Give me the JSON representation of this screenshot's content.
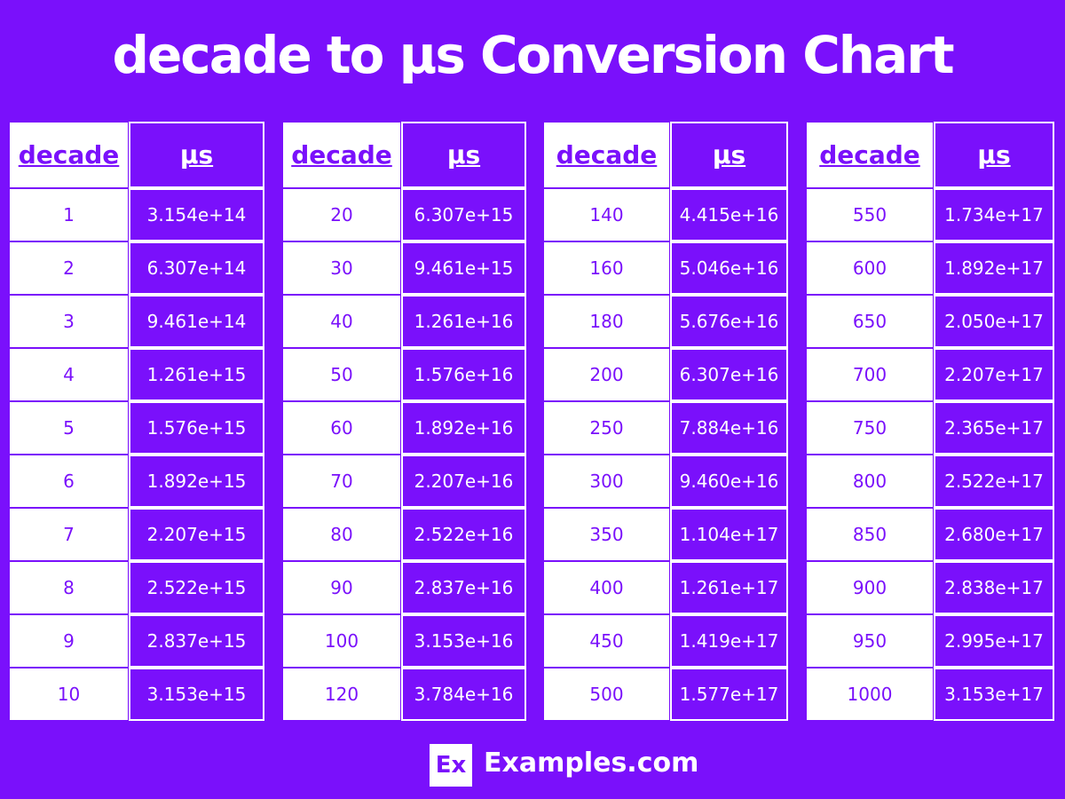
{
  "header": {
    "title": "decade to μs Conversion Chart"
  },
  "tables": [
    {
      "headers": [
        "decade",
        "μs"
      ],
      "rows": [
        [
          "1",
          "3.154e+14"
        ],
        [
          "2",
          "6.307e+14"
        ],
        [
          "3",
          "9.461e+14"
        ],
        [
          "4",
          "1.261e+15"
        ],
        [
          "5",
          "1.576e+15"
        ],
        [
          "6",
          "1.892e+15"
        ],
        [
          "7",
          "2.207e+15"
        ],
        [
          "8",
          "2.522e+15"
        ],
        [
          "9",
          "2.837e+15"
        ],
        [
          "10",
          "3.153e+15"
        ]
      ]
    },
    {
      "headers": [
        "decade",
        "μs"
      ],
      "rows": [
        [
          "20",
          "6.307e+15"
        ],
        [
          "30",
          "9.461e+15"
        ],
        [
          "40",
          "1.261e+16"
        ],
        [
          "50",
          "1.576e+16"
        ],
        [
          "60",
          "1.892e+16"
        ],
        [
          "70",
          "2.207e+16"
        ],
        [
          "80",
          "2.522e+16"
        ],
        [
          "90",
          "2.837e+16"
        ],
        [
          "100",
          "3.153e+16"
        ],
        [
          "120",
          "3.784e+16"
        ]
      ]
    },
    {
      "headers": [
        "decade",
        "μs"
      ],
      "rows": [
        [
          "140",
          "4.415e+16"
        ],
        [
          "160",
          "5.046e+16"
        ],
        [
          "180",
          "5.676e+16"
        ],
        [
          "200",
          "6.307e+16"
        ],
        [
          "250",
          "7.884e+16"
        ],
        [
          "300",
          "9.460e+16"
        ],
        [
          "350",
          "1.104e+17"
        ],
        [
          "400",
          "1.261e+17"
        ],
        [
          "450",
          "1.419e+17"
        ],
        [
          "500",
          "1.577e+17"
        ]
      ]
    },
    {
      "headers": [
        "decade",
        "μs"
      ],
      "rows": [
        [
          "550",
          "1.734e+17"
        ],
        [
          "600",
          "1.892e+17"
        ],
        [
          "650",
          "2.050e+17"
        ],
        [
          "700",
          "2.207e+17"
        ],
        [
          "750",
          "2.365e+17"
        ],
        [
          "800",
          "2.522e+17"
        ],
        [
          "850",
          "2.680e+17"
        ],
        [
          "900",
          "2.838e+17"
        ],
        [
          "950",
          "2.995e+17"
        ],
        [
          "1000",
          "3.153e+17"
        ]
      ]
    }
  ],
  "footer": {
    "logo": "Ex",
    "brand": "Examples.com"
  }
}
